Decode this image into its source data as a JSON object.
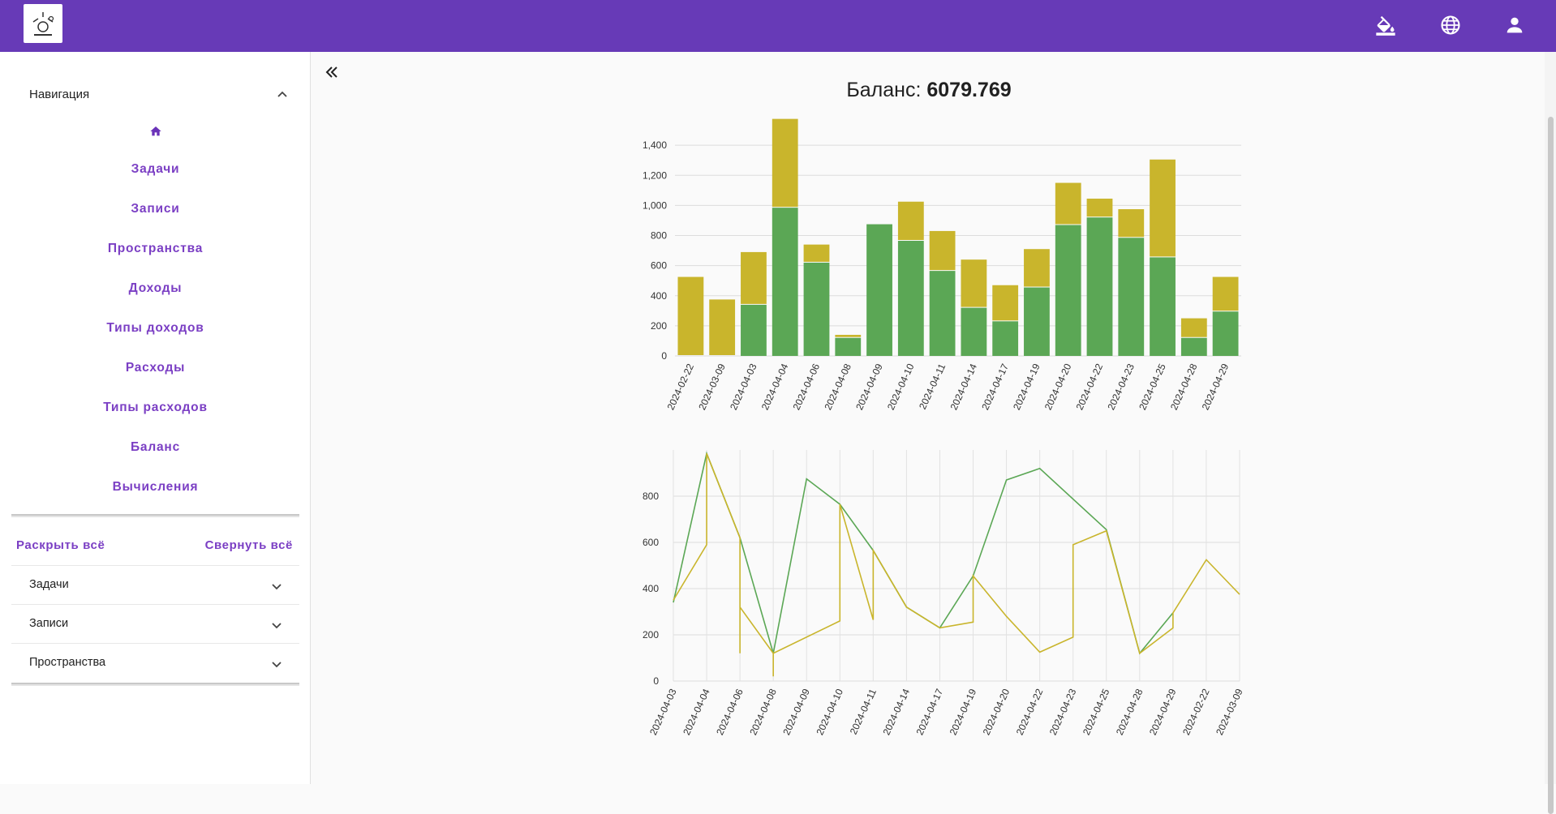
{
  "header": {
    "logo_icon": "app-logo",
    "icons": [
      "paint-bucket-icon",
      "globe-icon",
      "user-icon"
    ],
    "accent": "#673ab7"
  },
  "sidebar": {
    "nav_title": "Навигация",
    "home_icon": "home-icon",
    "items": [
      {
        "label": "Задачи"
      },
      {
        "label": "Записи"
      },
      {
        "label": "Пространства"
      },
      {
        "label": "Доходы"
      },
      {
        "label": "Типы доходов"
      },
      {
        "label": "Расходы"
      },
      {
        "label": "Типы расходов"
      },
      {
        "label": "Баланс"
      },
      {
        "label": "Вычисления"
      }
    ],
    "expand_all": "Раскрыть всё",
    "collapse_all": "Свернуть всё",
    "accordion": [
      {
        "label": "Задачи"
      },
      {
        "label": "Записи"
      },
      {
        "label": "Пространства"
      }
    ]
  },
  "main": {
    "balance_label": "Баланс:",
    "balance_value": "6079.769"
  },
  "chart_data": [
    {
      "type": "bar",
      "stacked": true,
      "categories": [
        "2024-02-22",
        "2024-03-09",
        "2024-04-03",
        "2024-04-04",
        "2024-04-06",
        "2024-04-08",
        "2024-04-09",
        "2024-04-10",
        "2024-04-11",
        "2024-04-14",
        "2024-04-17",
        "2024-04-19",
        "2024-04-20",
        "2024-04-22",
        "2024-04-23",
        "2024-04-25",
        "2024-04-28",
        "2024-04-29"
      ],
      "series": [
        {
          "color": "#5ba755",
          "values": [
            0,
            0,
            340,
            985,
            620,
            120,
            875,
            765,
            565,
            320,
            230,
            455,
            870,
            920,
            785,
            655,
            120,
            295
          ]
        },
        {
          "color": "#c9b52c",
          "values": [
            525,
            375,
            350,
            590,
            120,
            20,
            0,
            260,
            265,
            320,
            240,
            255,
            280,
            125,
            190,
            650,
            130,
            230
          ]
        }
      ],
      "yticks": [
        "0",
        "200",
        "400",
        "600",
        "800",
        "1,000",
        "1,200",
        "1,400"
      ],
      "ylim": [
        0,
        1600
      ],
      "grid": true
    },
    {
      "type": "line",
      "categories": [
        "2024-04-03",
        "2024-04-04",
        "2024-04-06",
        "2024-04-08",
        "2024-04-09",
        "2024-04-10",
        "2024-04-11",
        "2024-04-14",
        "2024-04-17",
        "2024-04-19",
        "2024-04-20",
        "2024-04-22",
        "2024-04-23",
        "2024-04-25",
        "2024-04-28",
        "2024-04-29",
        "2024-02-22",
        "2024-03-09"
      ],
      "series": [
        {
          "color": "#5ba755",
          "points": [
            [
              0,
              340
            ],
            [
              1,
              985
            ],
            [
              2,
              620
            ],
            [
              3,
              120
            ],
            [
              4,
              875
            ],
            [
              5,
              765
            ],
            [
              6,
              565
            ],
            [
              7,
              320
            ],
            [
              8,
              230
            ],
            [
              9,
              455
            ],
            [
              10,
              870
            ],
            [
              11,
              920
            ],
            [
              13,
              655
            ],
            [
              14,
              120
            ],
            [
              15,
              295
            ]
          ]
        },
        {
          "color": "#c9b52c",
          "points": [
            [
              0,
              350
            ],
            [
              1,
              590
            ],
            [
              1,
              985
            ],
            [
              2,
              620
            ],
            [
              2,
              120
            ],
            [
              2,
              320
            ],
            [
              3,
              120
            ],
            [
              3,
              20
            ],
            [
              3,
              120
            ],
            [
              5,
              260
            ],
            [
              5,
              765
            ],
            [
              6,
              265
            ],
            [
              6,
              565
            ],
            [
              7,
              320
            ],
            [
              8,
              230
            ],
            [
              9,
              255
            ],
            [
              9,
              455
            ],
            [
              10,
              280
            ],
            [
              11,
              125
            ],
            [
              12,
              190
            ],
            [
              12,
              590
            ],
            [
              13,
              650
            ],
            [
              14,
              120
            ],
            [
              15,
              230
            ],
            [
              15,
              295
            ],
            [
              16,
              525
            ],
            [
              17,
              375
            ]
          ]
        }
      ],
      "yticks": [
        "0",
        "200",
        "400",
        "600",
        "800"
      ],
      "ylim": [
        0,
        1000
      ],
      "grid": true
    }
  ]
}
